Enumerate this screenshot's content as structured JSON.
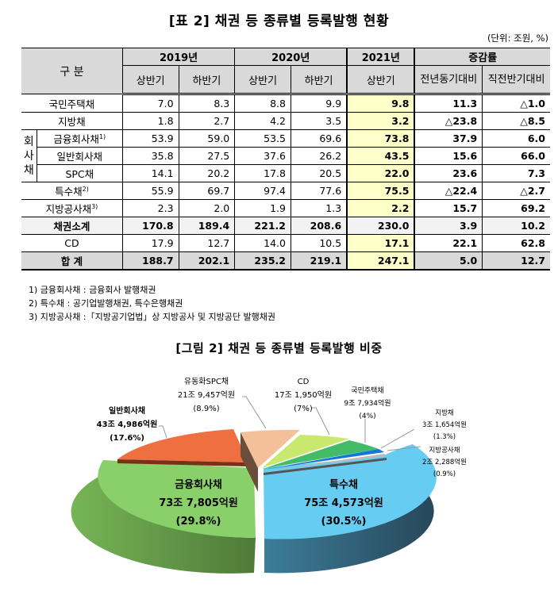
{
  "table": {
    "title": "[표 2] 채권 등 종류별 등록발행 현황",
    "unit": "(단위: 조원, %)",
    "header": {
      "gubun": "구 분",
      "years": [
        "2019년",
        "2020년",
        "2021년"
      ],
      "change": "증감률",
      "halves": [
        "상반기",
        "하반기",
        "상반기",
        "하반기",
        "상반기"
      ],
      "yoy": "전년동기대비",
      "hoh": "직전반기대비"
    },
    "group_label": "회사채",
    "rows": [
      {
        "label": "국민주택채",
        "values": [
          "7.0",
          "8.3",
          "8.8",
          "9.9",
          "9.8",
          "11.3",
          "△1.0"
        ]
      },
      {
        "label": "지방채",
        "values": [
          "1.8",
          "2.7",
          "4.2",
          "3.5",
          "3.2",
          "△23.8",
          "△8.5"
        ]
      },
      {
        "label": "금융회사채",
        "sup": "1)",
        "values": [
          "53.9",
          "59.0",
          "53.5",
          "69.6",
          "73.8",
          "37.9",
          "6.0"
        ]
      },
      {
        "label": "일반회사채",
        "values": [
          "35.8",
          "27.5",
          "37.6",
          "26.2",
          "43.5",
          "15.6",
          "66.0"
        ]
      },
      {
        "label": "SPC채",
        "values": [
          "14.1",
          "20.2",
          "17.8",
          "20.5",
          "22.0",
          "23.6",
          "7.3"
        ]
      },
      {
        "label": "특수채",
        "sup": "2)",
        "values": [
          "55.9",
          "69.7",
          "97.4",
          "77.6",
          "75.5",
          "△22.4",
          "△2.7"
        ]
      },
      {
        "label": "지방공사채",
        "sup": "3)",
        "values": [
          "2.3",
          "2.0",
          "1.9",
          "1.3",
          "2.2",
          "15.7",
          "69.2"
        ]
      },
      {
        "label": "채권소계",
        "values": [
          "170.8",
          "189.4",
          "221.2",
          "208.6",
          "230.0",
          "3.9",
          "10.2"
        ]
      },
      {
        "label": "CD",
        "values": [
          "17.9",
          "12.7",
          "14.0",
          "10.5",
          "17.1",
          "22.1",
          "62.8"
        ]
      },
      {
        "label": "합 계",
        "values": [
          "188.7",
          "202.1",
          "235.2",
          "219.1",
          "247.1",
          "5.0",
          "12.7"
        ]
      }
    ]
  },
  "notes": [
    "1) 금융회사채 : 금융회사 발행채권",
    "2) 특수채 : 공기업발행채권, 특수은행채권",
    "3) 지방공사채 :「지방공기업법」상 지방공사 및 지방공단 발행채권"
  ],
  "figure": {
    "title": "[그림 2] 채권 등 종류별 등록발행 비중",
    "slices": [
      {
        "name": "특수채",
        "amount": "75조 4,573억원",
        "pct": "(30.5%)",
        "color": "#66ccee"
      },
      {
        "name": "금융회사채",
        "amount": "73조 7,805억원",
        "pct": "(29.8%)",
        "color": "#88cc66"
      },
      {
        "name": "일반회사채",
        "amount": "43조 4,986억원",
        "pct": "(17.6%)",
        "color": "#ee7040"
      },
      {
        "name": "유동화SPC채",
        "amount": "21조 9,457억원",
        "pct": "(8.9%)",
        "color": "#f4c09a"
      },
      {
        "name": "CD",
        "amount": "17조 1,950억원",
        "pct": "(7%)",
        "color": "#c8e870"
      },
      {
        "name": "국민주택채",
        "amount": "9조 7,934억원",
        "pct": "(4%)",
        "color": "#44bb66"
      },
      {
        "name": "지방채",
        "amount": "3조 1,654억원",
        "pct": "(1.3%)",
        "color": "#1177dd"
      },
      {
        "name": "지방공사채",
        "amount": "2조 2,288억원",
        "pct": "(0.9%)",
        "color": "#bbbbbb"
      }
    ]
  },
  "chart_data": {
    "type": "pie",
    "title": "[그림 2] 채권 등 종류별 등록발행 비중",
    "categories": [
      "특수채",
      "금융회사채",
      "일반회사채",
      "유동화SPC채",
      "CD",
      "국민주택채",
      "지방채",
      "지방공사채"
    ],
    "values": [
      30.5,
      29.8,
      17.6,
      8.9,
      7.0,
      4.0,
      1.3,
      0.9
    ],
    "amounts": [
      "75조 4,573억원",
      "73조 7,805억원",
      "43조 4,986억원",
      "21조 9,457억원",
      "17조 1,950억원",
      "9조 7,934억원",
      "3조 1,654억원",
      "2조 2,288억원"
    ],
    "unit": "%"
  }
}
